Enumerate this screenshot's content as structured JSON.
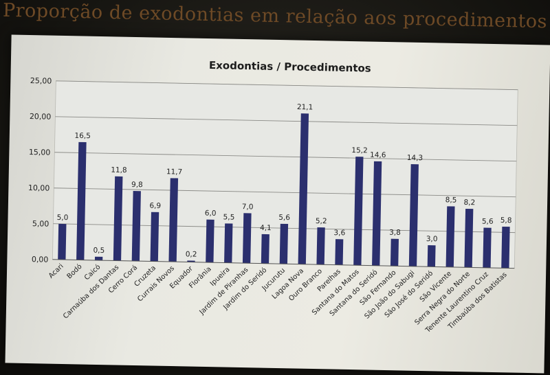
{
  "slide": {
    "title": "Proporção de exodontias em relação aos procedimentos"
  },
  "colors": {
    "bar": "#2b2f6e",
    "plot_area": "#e7e8e4",
    "title": "#6e4a26"
  },
  "chart_data": {
    "type": "bar",
    "title": "Exodontias / Procedimentos",
    "xlabel": "",
    "ylabel": "",
    "ylim": [
      0,
      25
    ],
    "yticks": [
      "0,00",
      "5,00",
      "10,00",
      "15,00",
      "20,00",
      "25,00"
    ],
    "grid": true,
    "legend": "none",
    "categories": [
      "Acari",
      "Bodó",
      "Caicó",
      "Carnaúba dos Dantas",
      "Cerro Corá",
      "Cruzeta",
      "Currais Novos",
      "Equador",
      "Florânia",
      "Ipueira",
      "Jardim de Piranhas",
      "Jardim do Seridó",
      "Jucurutu",
      "Lagoa Nova",
      "Ouro Branco",
      "Parelhas",
      "Santana do Matos",
      "Santana do Seridó",
      "São Fernando",
      "São João do Sabugi",
      "São José do Seridó",
      "São Vicente",
      "Serra Negra do Norte",
      "Tenente Laurentino Cruz",
      "Timbaúba dos Batistas"
    ],
    "values": [
      5.0,
      16.5,
      0.5,
      11.8,
      9.8,
      6.9,
      11.7,
      0.2,
      6.0,
      5.5,
      7.0,
      4.1,
      5.6,
      21.1,
      5.2,
      3.6,
      15.2,
      14.6,
      3.8,
      14.3,
      3.0,
      8.5,
      8.2,
      5.6,
      5.8
    ],
    "value_labels": [
      "5,0",
      "16,5",
      "0,5",
      "11,8",
      "9,8",
      "6,9",
      "11,7",
      "0,2",
      "6,0",
      "5,5",
      "7,0",
      "4,1",
      "5,6",
      "21,1",
      "5,2",
      "3,6",
      "15,2",
      "14,6",
      "3,8",
      "14,3",
      "3,0",
      "8,5",
      "8,2",
      "5,6",
      "5,8"
    ]
  }
}
